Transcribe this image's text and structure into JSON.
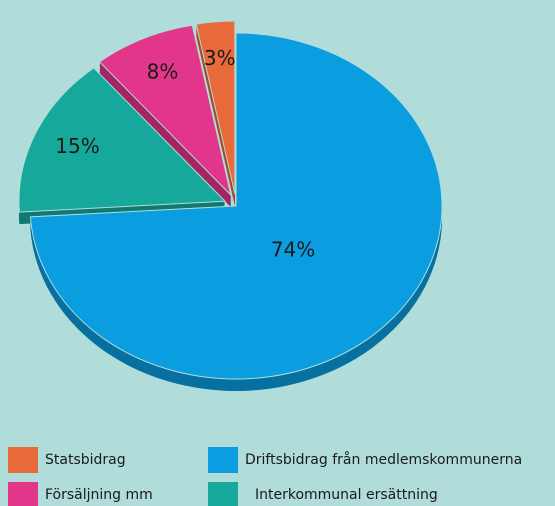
{
  "chart_data": {
    "type": "pie",
    "categories": [
      "Driftsbidrag från medlemskommunerna",
      "Interkommunal ersättning",
      "Försäljning mm",
      "Statsbidrag"
    ],
    "values": [
      74,
      15,
      8,
      3
    ],
    "value_labels": [
      "74%",
      "15%",
      "8%",
      "3%"
    ],
    "colors": [
      "#0a9de0",
      "#16a99b",
      "#e2368b",
      "#e8693a"
    ]
  }
}
